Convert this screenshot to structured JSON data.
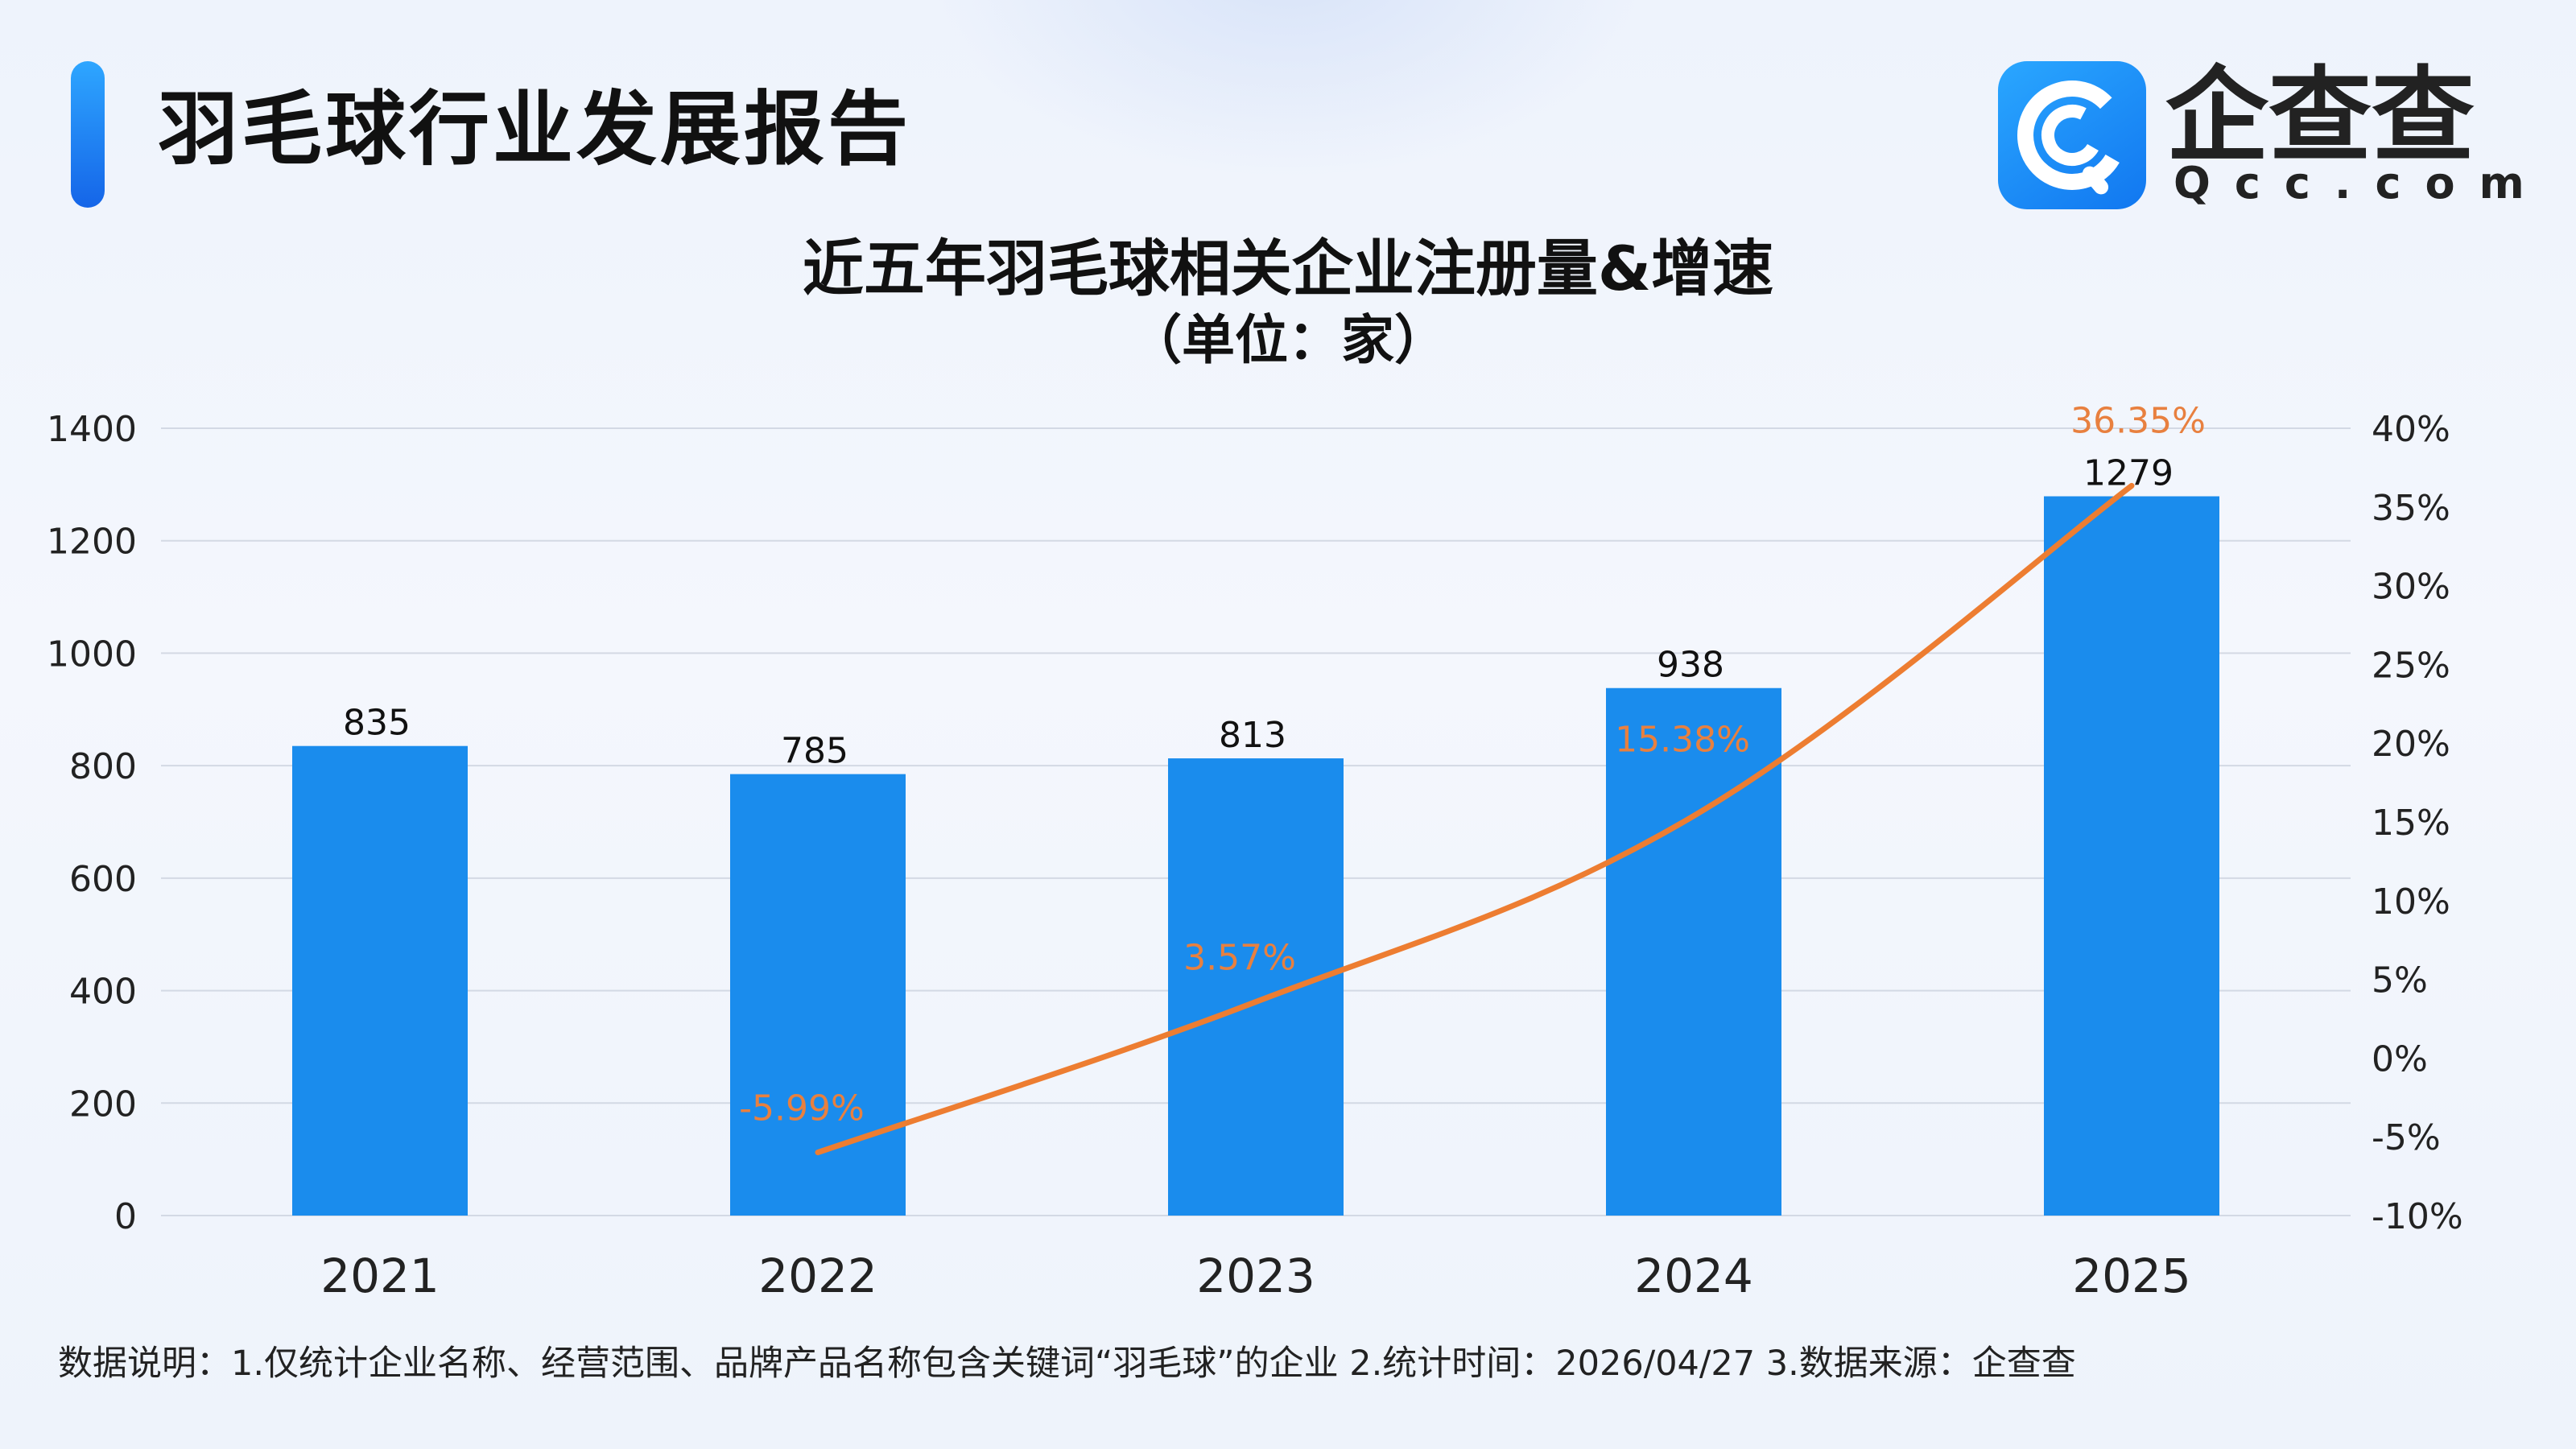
{
  "header": {
    "title": "羽毛球行业发展报告",
    "logo_text": "企查查",
    "logo_domain": "Qcc.com"
  },
  "footnote": "数据说明：1.仅统计企业名称、经营范围、品牌产品名称包含关键词“羽毛球”的企业   2.统计时间：2026/04/27    3.数据来源：企查查",
  "colors": {
    "bar": "#1a8ced",
    "line": "#ed7d31",
    "rate_label": "#e8803f",
    "accent": "#1677ff"
  },
  "chart_data": {
    "type": "bar",
    "title": "近五年羽毛球相关企业注册量&增速",
    "subtitle": "（单位：家）",
    "categories": [
      "2021",
      "2022",
      "2023",
      "2024",
      "2025"
    ],
    "series": [
      {
        "name": "",
        "type": "bar",
        "axis": "left",
        "values": [
          835,
          785,
          813,
          938,
          1279
        ],
        "labels": [
          "835",
          "785",
          "813",
          "938",
          "1279"
        ]
      },
      {
        "name": "",
        "type": "line",
        "axis": "right",
        "values": [
          null,
          -5.99,
          3.57,
          15.38,
          36.35
        ],
        "labels": [
          "",
          "-5.99%",
          "3.57%",
          "15.38%",
          "36.35%"
        ]
      }
    ],
    "y_left": {
      "min": 0,
      "max": 1400,
      "ticks": [
        "0",
        "200",
        "400",
        "600",
        "800",
        "1000",
        "1200",
        "1400"
      ]
    },
    "y_right": {
      "min": -10,
      "max": 40,
      "ticks": [
        "-10%",
        "-5%",
        "0%",
        "5%",
        "10%",
        "15%",
        "20%",
        "25%",
        "30%",
        "35%",
        "40%"
      ]
    },
    "grid": true,
    "legend": "none"
  }
}
